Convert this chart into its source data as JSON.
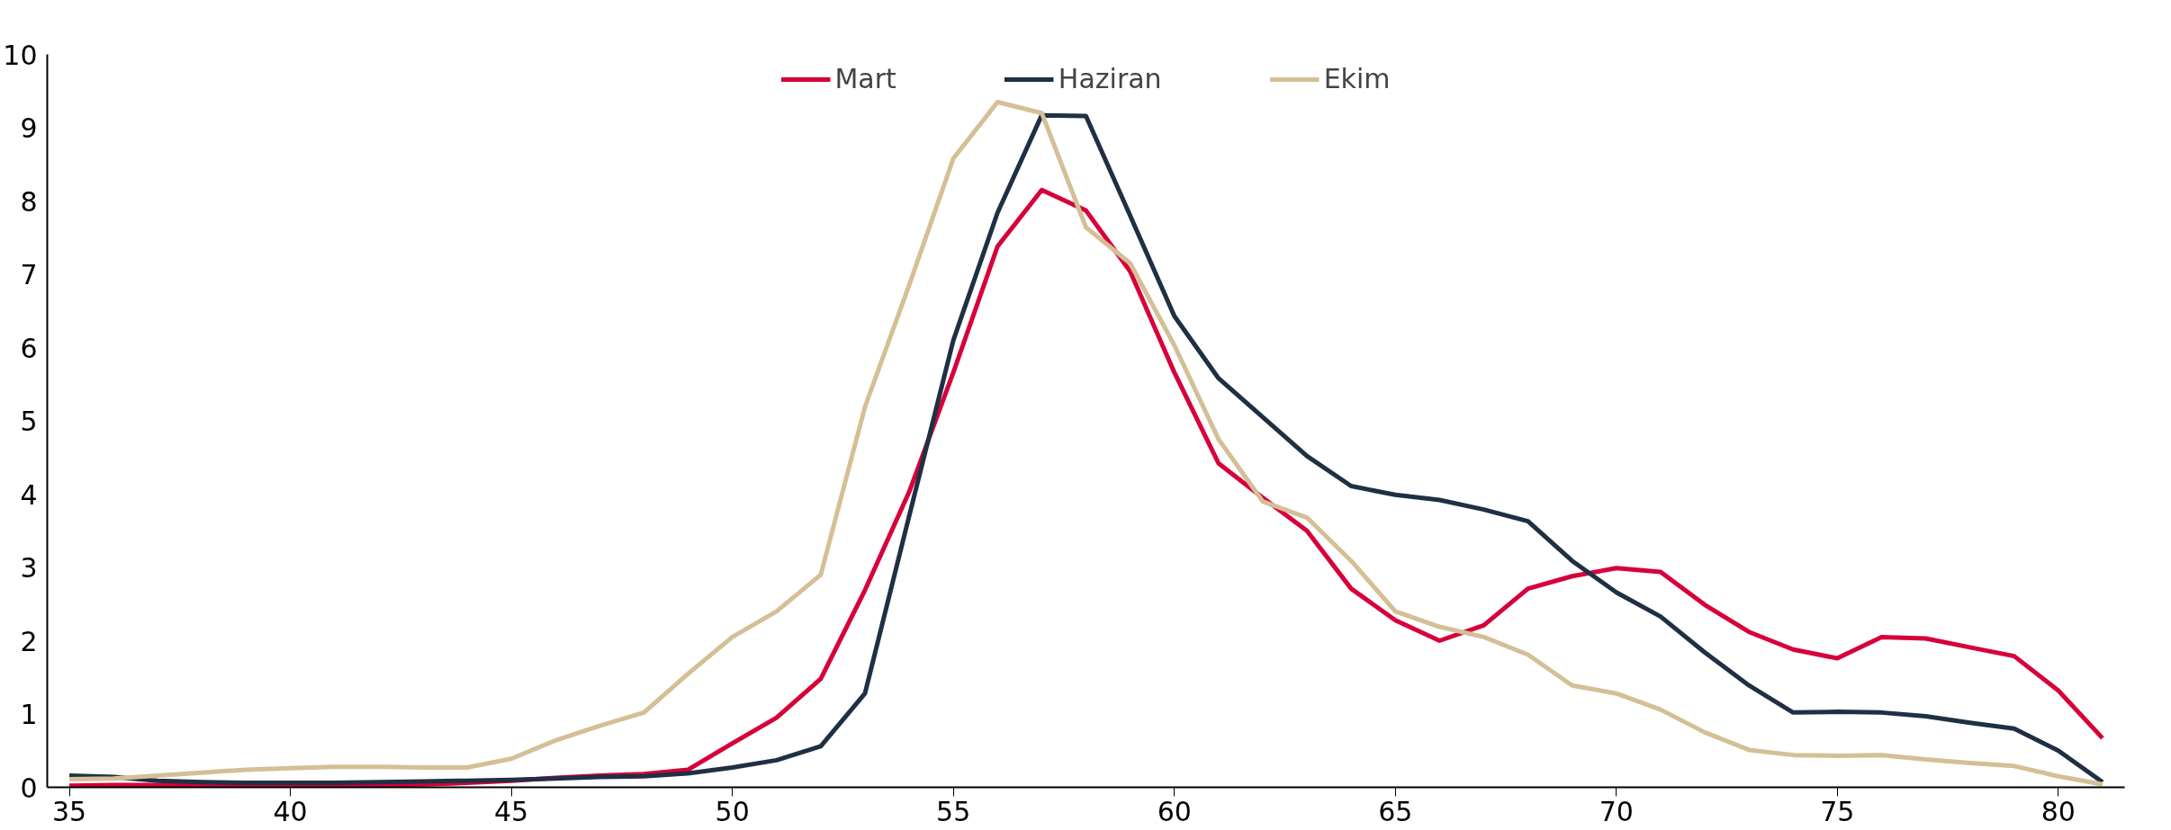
{
  "chart_data": {
    "type": "line",
    "categories": [
      "35",
      null,
      null,
      null,
      null,
      "40",
      null,
      null,
      null,
      null,
      "45",
      null,
      null,
      null,
      null,
      "50",
      null,
      null,
      null,
      null,
      "55",
      null,
      null,
      null,
      null,
      "60",
      null,
      null,
      null,
      null,
      "65",
      null,
      null,
      null,
      null,
      "70",
      null,
      null,
      null,
      null,
      "75",
      null,
      null,
      null,
      null,
      "80",
      null
    ],
    "series": [
      {
        "name": "Mart",
        "color": "#d7003a",
        "values": [
          0.02,
          0.03,
          0.03,
          0.02,
          0.01,
          0.01,
          0.02,
          0.03,
          0.04,
          0.06,
          0.09,
          0.13,
          0.16,
          0.18,
          0.24,
          0.6,
          0.95,
          1.48,
          2.69,
          4.03,
          5.66,
          7.38,
          8.15,
          7.87,
          7.04,
          5.66,
          4.42,
          3.95,
          3.5,
          2.71,
          2.28,
          2.0,
          2.21,
          2.71,
          2.88,
          2.99,
          2.94,
          2.49,
          2.12,
          1.88,
          1.76,
          2.05,
          2.03,
          1.91,
          1.79,
          1.32,
          0.67
        ]
      },
      {
        "name": "Haziran",
        "color": "#1f3044",
        "values": [
          0.16,
          0.14,
          0.09,
          0.07,
          0.06,
          0.06,
          0.06,
          0.07,
          0.08,
          0.09,
          0.1,
          0.12,
          0.14,
          0.15,
          0.19,
          0.27,
          0.37,
          0.56,
          1.28,
          3.7,
          6.1,
          7.84,
          9.17,
          9.16,
          7.8,
          6.43,
          5.58,
          5.05,
          4.52,
          4.11,
          3.99,
          3.92,
          3.79,
          3.63,
          3.09,
          2.66,
          2.33,
          1.84,
          1.39,
          1.02,
          1.03,
          1.02,
          0.97,
          0.88,
          0.8,
          0.5,
          0.07
        ]
      },
      {
        "name": "Ekim",
        "color": "#d4bf96",
        "values": [
          0.11,
          0.12,
          0.16,
          0.2,
          0.24,
          0.26,
          0.28,
          0.28,
          0.27,
          0.27,
          0.39,
          0.64,
          0.84,
          1.02,
          1.55,
          2.05,
          2.4,
          2.9,
          5.19,
          6.85,
          8.58,
          9.35,
          9.2,
          7.64,
          7.15,
          6.03,
          4.75,
          3.9,
          3.68,
          3.09,
          2.4,
          2.19,
          2.05,
          1.81,
          1.39,
          1.28,
          1.06,
          0.75,
          0.51,
          0.44,
          0.43,
          0.44,
          0.38,
          0.33,
          0.29,
          0.15,
          0.04
        ]
      }
    ],
    "ylim": [
      0,
      10
    ],
    "yticks": [
      0,
      1,
      2,
      3,
      4,
      5,
      6,
      7,
      8,
      9,
      10
    ],
    "grid": false,
    "legend": "top",
    "marker": "none",
    "line_style": "solid"
  }
}
